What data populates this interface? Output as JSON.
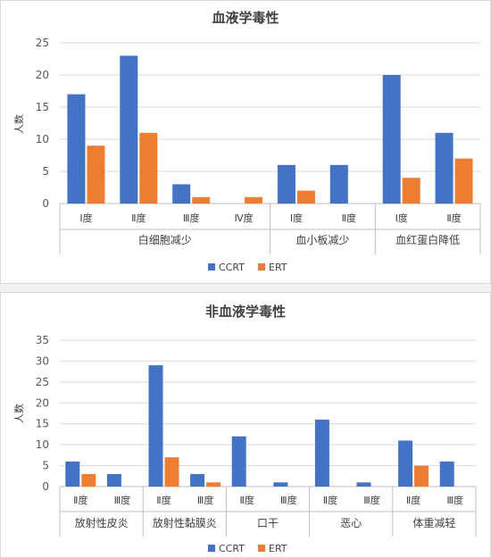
{
  "colors": {
    "ccrt": "#4472C4",
    "ert": "#ED7D31",
    "grid": "#d9d9d9",
    "axis": "#bfbfbf"
  },
  "chart_data": [
    {
      "type": "bar",
      "title": "血液学毒性",
      "ylabel": "人数",
      "ylim": [
        0,
        25
      ],
      "yticks": [
        0,
        5,
        10,
        15,
        20,
        25
      ],
      "grid": true,
      "legend_position": "bottom",
      "categories": [
        "Ⅰ度",
        "Ⅱ度",
        "Ⅲ度",
        "Ⅳ度",
        "Ⅰ度",
        "Ⅱ度",
        "Ⅰ度",
        "Ⅱ度"
      ],
      "groups": [
        {
          "label": "白细胞减少",
          "count": 4
        },
        {
          "label": "血小板减少",
          "count": 2
        },
        {
          "label": "血红蛋白降低",
          "count": 2
        }
      ],
      "series": [
        {
          "name": "CCRT",
          "values": [
            17,
            23,
            3,
            0,
            6,
            6,
            20,
            11
          ]
        },
        {
          "name": "ERT",
          "values": [
            9,
            11,
            1,
            1,
            2,
            0,
            4,
            7
          ]
        }
      ]
    },
    {
      "type": "bar",
      "title": "非血液学毒性",
      "ylabel": "人数",
      "ylim": [
        0,
        35
      ],
      "yticks": [
        0,
        5,
        10,
        15,
        20,
        25,
        30,
        35
      ],
      "grid": true,
      "legend_position": "bottom",
      "categories": [
        "Ⅱ度",
        "Ⅲ度",
        "Ⅱ度",
        "Ⅲ度",
        "Ⅱ度",
        "Ⅲ度",
        "Ⅱ度",
        "Ⅲ度",
        "Ⅱ度",
        "Ⅲ度"
      ],
      "groups": [
        {
          "label": "放射性皮炎",
          "count": 2
        },
        {
          "label": "放射性黏膜炎",
          "count": 2
        },
        {
          "label": "口干",
          "count": 2
        },
        {
          "label": "恶心",
          "count": 2
        },
        {
          "label": "体重减轻",
          "count": 2
        }
      ],
      "series": [
        {
          "name": "CCRT",
          "values": [
            6,
            3,
            29,
            3,
            12,
            1,
            16,
            1,
            11,
            6
          ]
        },
        {
          "name": "ERT",
          "values": [
            3,
            0,
            7,
            1,
            0,
            0,
            0,
            0,
            5,
            0
          ]
        }
      ]
    }
  ]
}
